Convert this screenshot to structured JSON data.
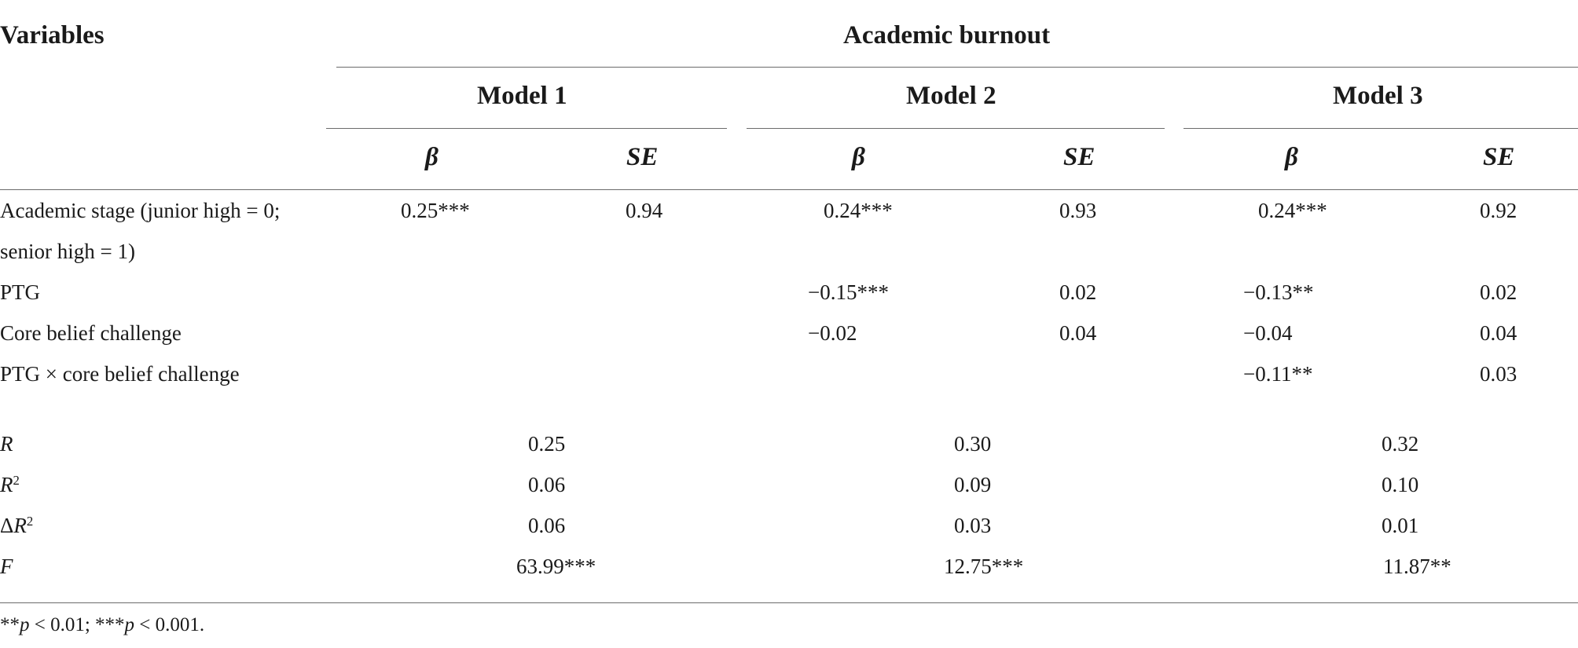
{
  "header": {
    "variables_label": "Variables",
    "group_label": "Academic burnout",
    "models": [
      "Model 1",
      "Model 2",
      "Model 3"
    ],
    "beta_label": "β",
    "se_label": "SE"
  },
  "rows": [
    {
      "label_line1": "Academic stage (junior high = 0;",
      "label_line2": "senior high = 1)",
      "m1_beta": "0.25***",
      "m1_se": "0.94",
      "m2_beta": "0.24***",
      "m2_se": "0.93",
      "m3_beta": "0.24***",
      "m3_se": "0.92"
    },
    {
      "label": "PTG",
      "m2_beta": "−0.15***",
      "m2_se": "0.02",
      "m3_beta": "−0.13**",
      "m3_se": "0.02"
    },
    {
      "label": "Core belief challenge",
      "m2_beta": "−0.02",
      "m2_se": "0.04",
      "m3_beta": "−0.04",
      "m3_se": "0.04"
    },
    {
      "label": "PTG × core belief challenge",
      "m3_beta": "−0.11**",
      "m3_se": "0.03"
    }
  ],
  "stats": [
    {
      "label": "R",
      "values": [
        "0.25",
        "0.30",
        "0.32"
      ]
    },
    {
      "label": "R",
      "sup": "2",
      "values": [
        "0.06",
        "0.09",
        "0.10"
      ]
    },
    {
      "prefix": "Δ",
      "label": "R",
      "sup": "2",
      "values": [
        "0.06",
        "0.03",
        "0.01"
      ]
    },
    {
      "label": "F",
      "values": [
        "63.99***",
        "12.75***",
        "11.87**"
      ]
    }
  ],
  "footnote": {
    "part1": "**",
    "p1": "p",
    "part2": " < 0.01; ***",
    "p2": "p",
    "part3": " < 0.001."
  }
}
